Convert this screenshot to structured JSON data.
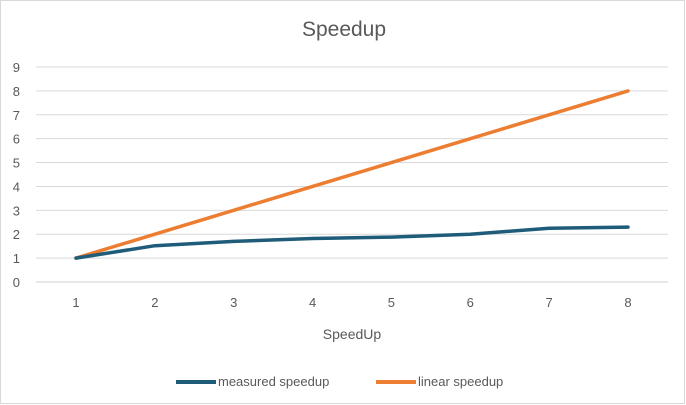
{
  "chart_data": {
    "type": "line",
    "title": "Speedup",
    "xlabel": "SpeedUp",
    "ylabel": "",
    "categories": [
      "1",
      "2",
      "3",
      "4",
      "5",
      "6",
      "7",
      "8"
    ],
    "y_ticks": [
      "0",
      "1",
      "2",
      "3",
      "4",
      "5",
      "6",
      "7",
      "8",
      "9"
    ],
    "ylim": [
      0,
      9
    ],
    "grid": true,
    "legend_position": "bottom",
    "series": [
      {
        "name": "measured speedup",
        "color": "#1f5c7a",
        "values": [
          1.0,
          1.52,
          1.7,
          1.82,
          1.88,
          2.0,
          2.25,
          2.3
        ]
      },
      {
        "name": "linear speedup",
        "color": "#ed7d31",
        "values": [
          1,
          2,
          3,
          4,
          5,
          6,
          7,
          8
        ]
      }
    ]
  }
}
